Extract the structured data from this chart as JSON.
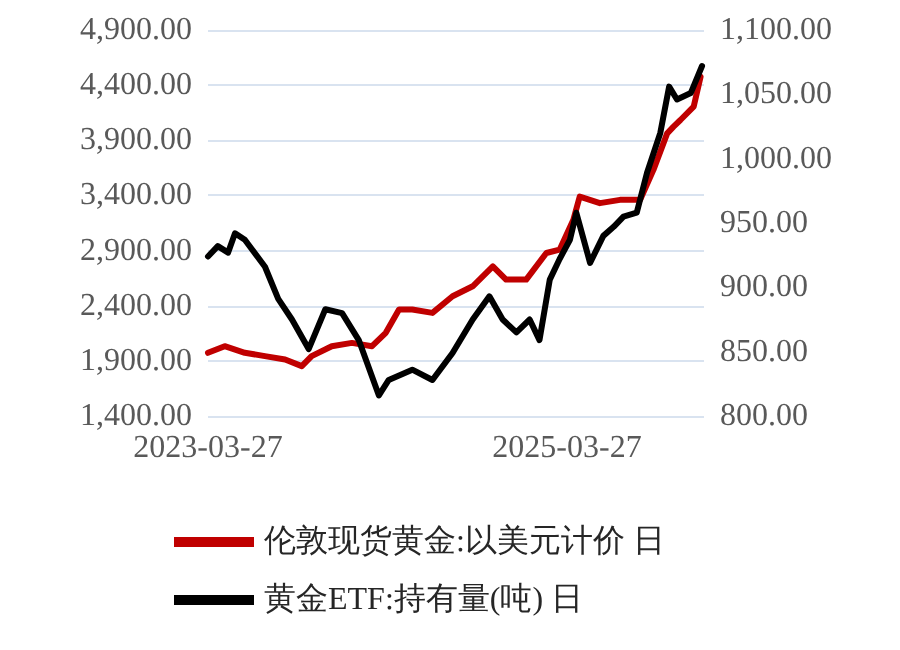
{
  "chart_data": {
    "type": "line",
    "xlim": [
      "2023-03-27",
      "2025-12-31"
    ],
    "xticks": [
      "2023-03-27",
      "2025-03-27"
    ],
    "ylim": [
      1400,
      4900
    ],
    "yticks": [
      {
        "value": 1400,
        "label": "1,400.00"
      },
      {
        "value": 1900,
        "label": "1,900.00"
      },
      {
        "value": 2400,
        "label": "2,400.00"
      },
      {
        "value": 2900,
        "label": "2,900.00"
      },
      {
        "value": 3400,
        "label": "3,400.00"
      },
      {
        "value": 3900,
        "label": "3,900.00"
      },
      {
        "value": 4400,
        "label": "4,400.00"
      },
      {
        "value": 4900,
        "label": "4,900.00"
      }
    ],
    "y2lim": [
      800,
      1100
    ],
    "y2ticks": [
      {
        "value": 800,
        "label": "800.00"
      },
      {
        "value": 850,
        "label": "850.00"
      },
      {
        "value": 900,
        "label": "900.00"
      },
      {
        "value": 950,
        "label": "950.00"
      },
      {
        "value": 1000,
        "label": "1,000.00"
      },
      {
        "value": 1050,
        "label": "1,050.00"
      },
      {
        "value": 1100,
        "label": "1,100.00"
      }
    ],
    "grid": "y",
    "legend": "bottom",
    "marker": "none",
    "line_style": "solid",
    "series": [
      {
        "name": "伦敦现货黄金:以美元计价 日",
        "color": "#c00000",
        "x": [
          "2023-03-27",
          "2023-04-30",
          "2023-06-10",
          "2023-07-21",
          "2023-08-31",
          "2023-10-04",
          "2023-10-24",
          "2023-12-04",
          "2024-01-14",
          "2024-02-24",
          "2024-03-23",
          "2024-04-19",
          "2024-05-16",
          "2024-06-26",
          "2024-08-06",
          "2024-09-16",
          "2024-10-27",
          "2024-11-23",
          "2025-01-03",
          "2025-02-13",
          "2025-03-12",
          "2025-04-09",
          "2025-04-22",
          "2025-06-02",
          "2025-07-13",
          "2025-08-23",
          "2025-09-19",
          "2025-10-17",
          "2025-10-30",
          "2025-11-13",
          "2025-12-10",
          "2025-12-24"
        ],
        "values": [
          1973,
          2033,
          1973,
          1943,
          1913,
          1852,
          1943,
          2033,
          2063,
          2033,
          2154,
          2365,
          2365,
          2335,
          2486,
          2576,
          2757,
          2637,
          2637,
          2878,
          2908,
          3179,
          3390,
          3330,
          3360,
          3360,
          3632,
          3963,
          4024,
          4084,
          4205,
          4476
        ]
      },
      {
        "name": "黄金ETF:持有量(吨) 日",
        "color": "#000000",
        "axis": "y2",
        "x": [
          "2023-03-27",
          "2023-04-16",
          "2023-05-07",
          "2023-05-21",
          "2023-06-10",
          "2023-07-21",
          "2023-08-17",
          "2023-09-14",
          "2023-10-18",
          "2023-11-21",
          "2023-12-25",
          "2024-01-28",
          "2024-03-09",
          "2024-03-29",
          "2024-05-16",
          "2024-06-26",
          "2024-08-06",
          "2024-09-16",
          "2024-10-20",
          "2024-11-16",
          "2024-12-14",
          "2025-01-10",
          "2025-01-30",
          "2025-02-20",
          "2025-03-12",
          "2025-04-02",
          "2025-04-15",
          "2025-05-13",
          "2025-06-09",
          "2025-06-30",
          "2025-07-20",
          "2025-08-16",
          "2025-09-06",
          "2025-10-03",
          "2025-10-21",
          "2025-11-06",
          "2025-12-04",
          "2025-12-27"
        ],
        "values": [
          924,
          932,
          927,
          942,
          937,
          916,
          891,
          875,
          852,
          883,
          880,
          859,
          816,
          828,
          836,
          828,
          849,
          875,
          893,
          875,
          865,
          875,
          859,
          906,
          922,
          937,
          958,
          919,
          940,
          947,
          955,
          958,
          989,
          1020,
          1056,
          1046,
          1051,
          1072
        ]
      }
    ]
  }
}
